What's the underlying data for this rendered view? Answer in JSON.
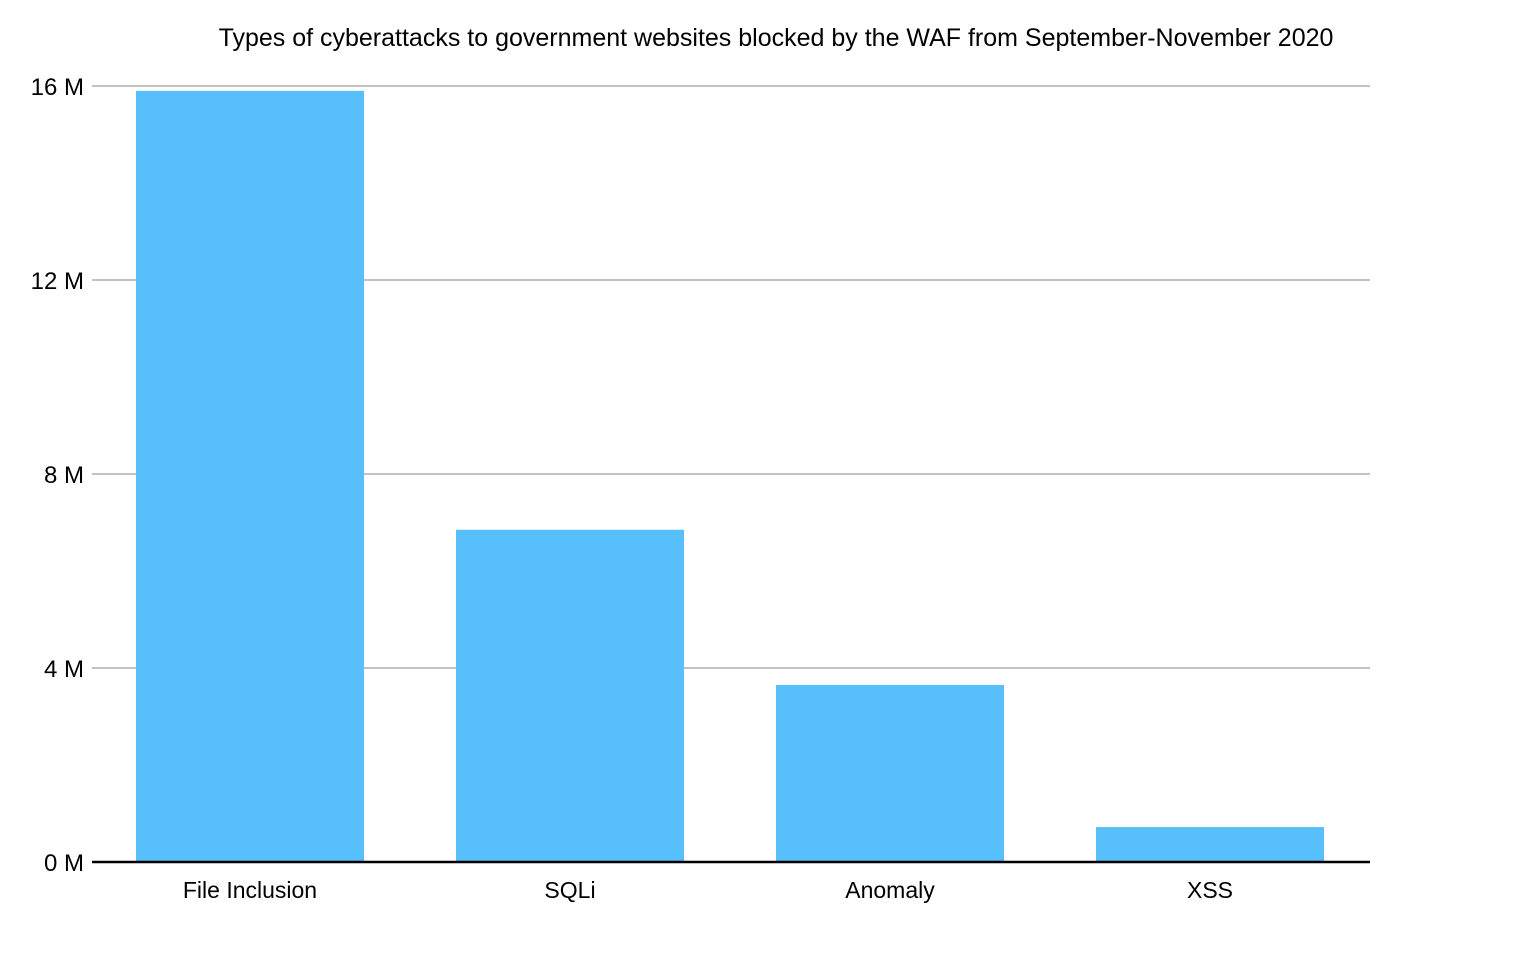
{
  "chart_data": {
    "type": "bar",
    "title": "Types of cyberattacks to government websites blocked by the WAF from September-November 2020",
    "xlabel": "",
    "ylabel": "",
    "categories": [
      "File Inclusion",
      "SQLi",
      "Anomaly",
      "XSS"
    ],
    "values": [
      15.9,
      6.85,
      3.65,
      0.72
    ],
    "unit": "M",
    "ylim": [
      0,
      16
    ],
    "yticks": [
      {
        "value": 0,
        "label": "0 M"
      },
      {
        "value": 4,
        "label": "4 M"
      },
      {
        "value": 8,
        "label": "8 M"
      },
      {
        "value": 12,
        "label": "12 M"
      },
      {
        "value": 16,
        "label": "16 M"
      }
    ],
    "grid": true,
    "legend": "none",
    "colors": {
      "bar": "#56bffc",
      "grid": "#c3c3c3",
      "axis": "#000000"
    }
  }
}
